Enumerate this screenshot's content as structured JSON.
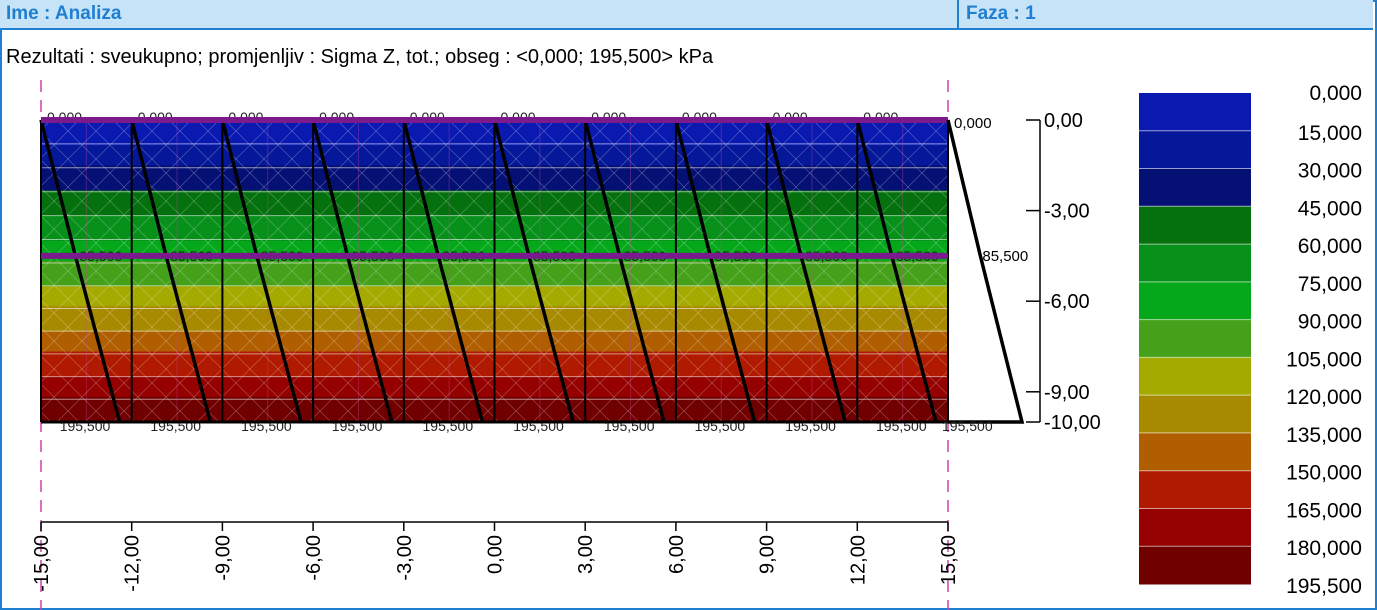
{
  "header": {
    "name_label": "Ime : Analiza",
    "phase_label": "Faza : 1"
  },
  "subtitle": "Rezultati : sveukupno; promjenljiv : Sigma Z, tot.; obseg : <0,000; 195,500> kPa",
  "colors": {
    "frame": "#1f7fd0",
    "header_bg": "#c6e3f7",
    "stress_line": "#000000",
    "layer_boundary": "#7a1a8c",
    "guide_line": "#cc44aa"
  },
  "chart_data": {
    "type": "heatmap",
    "title": "",
    "variable": "Sigma Z, tot.",
    "unit": "kPa",
    "range": [
      0.0,
      195.5
    ],
    "x_ticks": [
      "-15,00",
      "-12,00",
      "-9,00",
      "-6,00",
      "-3,00",
      "0,00",
      "3,00",
      "6,00",
      "9,00",
      "12,00",
      "15,00"
    ],
    "x_values": [
      -15,
      -12,
      -9,
      -6,
      -3,
      0,
      3,
      6,
      9,
      12,
      15
    ],
    "xlim": [
      -15,
      15
    ],
    "y_ticks": [
      "0,00",
      "-3,00",
      "-6,00",
      "-9,00",
      "-10,00"
    ],
    "y_values": [
      0,
      -3,
      -6,
      -9,
      -10
    ],
    "ylim": [
      -10,
      0
    ],
    "layer_boundaries_depth": [
      0,
      -4.5
    ],
    "legend_values": [
      "0,000",
      "15,000",
      "30,000",
      "45,000",
      "60,000",
      "75,000",
      "90,000",
      "105,000",
      "120,000",
      "135,000",
      "150,000",
      "165,000",
      "180,000",
      "195,500"
    ],
    "legend_colors": [
      "#0a1ab0",
      "#06189a",
      "#051075",
      "#04700e",
      "#07901a",
      "#04a81a",
      "#45a01a",
      "#a4aa00",
      "#a88a00",
      "#b05e00",
      "#b01a00",
      "#950000",
      "#700000"
    ],
    "profiles": [
      {
        "x": -15.0,
        "labels": [
          "0,000",
          "85,500",
          "195,500"
        ]
      },
      {
        "x": -12.0,
        "labels": [
          "0,000",
          "85,500",
          "195,500"
        ]
      },
      {
        "x": -9.0,
        "labels": [
          "0,000",
          "85,500",
          "195,500"
        ]
      },
      {
        "x": -6.0,
        "labels": [
          "0,000",
          "85,500",
          "195,500"
        ]
      },
      {
        "x": -3.0,
        "labels": [
          "0,000",
          "85,500",
          "195,500"
        ]
      },
      {
        "x": 0.0,
        "labels": [
          "0,000",
          "85,500",
          "195,500"
        ]
      },
      {
        "x": 3.0,
        "labels": [
          "0,000",
          "85,500",
          "195,500"
        ]
      },
      {
        "x": 6.0,
        "labels": [
          "0,000",
          "85,500",
          "195,500"
        ]
      },
      {
        "x": 9.0,
        "labels": [
          "0,000",
          "85,500",
          "195,500"
        ]
      },
      {
        "x": 12.0,
        "labels": [
          "0,000",
          "85,500",
          "195,500"
        ]
      }
    ],
    "side_profile": {
      "labels": [
        "0,000",
        "85,500",
        "195,500"
      ],
      "values": [
        0,
        85.5,
        195.5
      ],
      "depths": [
        0,
        -4.5,
        -10
      ]
    }
  }
}
